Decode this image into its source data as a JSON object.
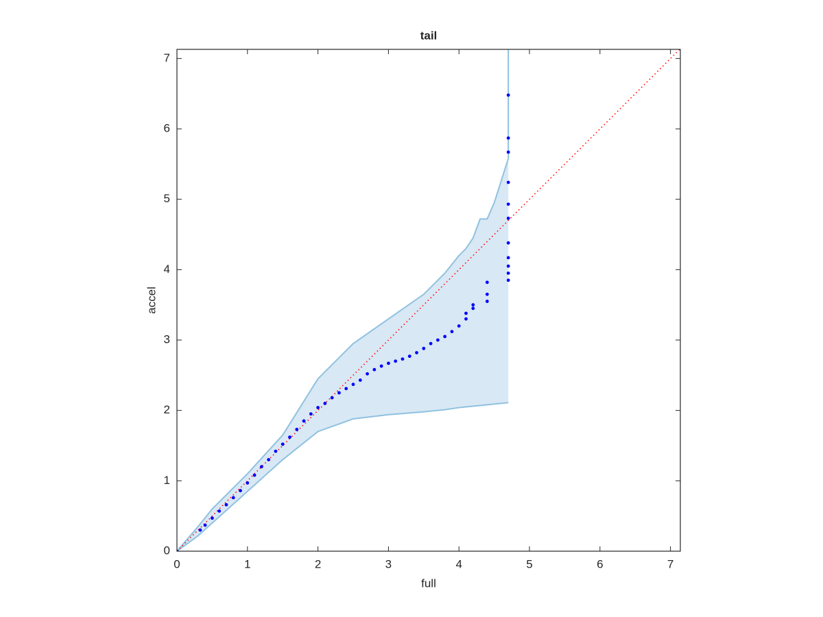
{
  "chart_data": {
    "type": "scatter",
    "title": "tail",
    "xlabel": "full",
    "ylabel": "accel",
    "xlim": [
      0,
      7.14
    ],
    "ylim": [
      0,
      7.13
    ],
    "xticks": [
      0,
      1,
      2,
      3,
      4,
      5,
      6,
      7
    ],
    "yticks": [
      0,
      1,
      2,
      3,
      4,
      5,
      6,
      7
    ],
    "color": "#0000ff",
    "band": {
      "color": "#8fc1e0",
      "fill": "#d8e8f4",
      "x": [
        0,
        0.3,
        0.5,
        1.0,
        1.5,
        2.0,
        2.5,
        3.0,
        3.5,
        3.8,
        4.0,
        4.1,
        4.2,
        4.3,
        4.4,
        4.5,
        4.7,
        4.7
      ],
      "upper": [
        0,
        0.35,
        0.6,
        1.1,
        1.65,
        2.45,
        2.95,
        3.3,
        3.65,
        3.95,
        4.2,
        4.3,
        4.45,
        4.72,
        4.72,
        4.95,
        5.58,
        7.13
      ],
      "lower": [
        0,
        0.22,
        0.4,
        0.85,
        1.3,
        1.7,
        1.88,
        1.94,
        1.98,
        2.01,
        2.04,
        2.05,
        2.06,
        2.07,
        2.08,
        2.09,
        2.11,
        2.11
      ]
    },
    "reference_line": {
      "color": "#ff0000",
      "x": [
        0,
        7.14
      ],
      "y": [
        0,
        7.14
      ]
    },
    "x": [
      0,
      0.33,
      0.4,
      0.5,
      0.6,
      0.7,
      0.8,
      0.9,
      1.0,
      1.1,
      1.2,
      1.3,
      1.4,
      1.5,
      1.6,
      1.7,
      1.8,
      1.9,
      2.0,
      2.1,
      2.2,
      2.3,
      2.4,
      2.5,
      2.6,
      2.7,
      2.8,
      2.9,
      3.0,
      3.1,
      3.2,
      3.3,
      3.4,
      3.5,
      3.6,
      3.7,
      3.8,
      3.9,
      4.0,
      4.1,
      4.1,
      4.2,
      4.2,
      4.4,
      4.4,
      4.4,
      4.7,
      4.7,
      4.7,
      4.7,
      4.7,
      4.7,
      4.7,
      4.7,
      4.7,
      4.7,
      4.7
    ],
    "y": [
      0,
      0.3,
      0.37,
      0.47,
      0.57,
      0.66,
      0.76,
      0.86,
      0.97,
      1.08,
      1.2,
      1.3,
      1.42,
      1.52,
      1.62,
      1.73,
      1.85,
      1.95,
      2.04,
      2.1,
      2.18,
      2.25,
      2.31,
      2.37,
      2.43,
      2.52,
      2.58,
      2.63,
      2.67,
      2.7,
      2.73,
      2.77,
      2.82,
      2.88,
      2.95,
      3.0,
      3.05,
      3.12,
      3.2,
      3.3,
      3.38,
      3.45,
      3.5,
      3.55,
      3.65,
      3.82,
      3.85,
      3.95,
      4.05,
      4.17,
      4.38,
      4.73,
      4.93,
      5.24,
      5.67,
      5.87,
      6.48
    ]
  }
}
